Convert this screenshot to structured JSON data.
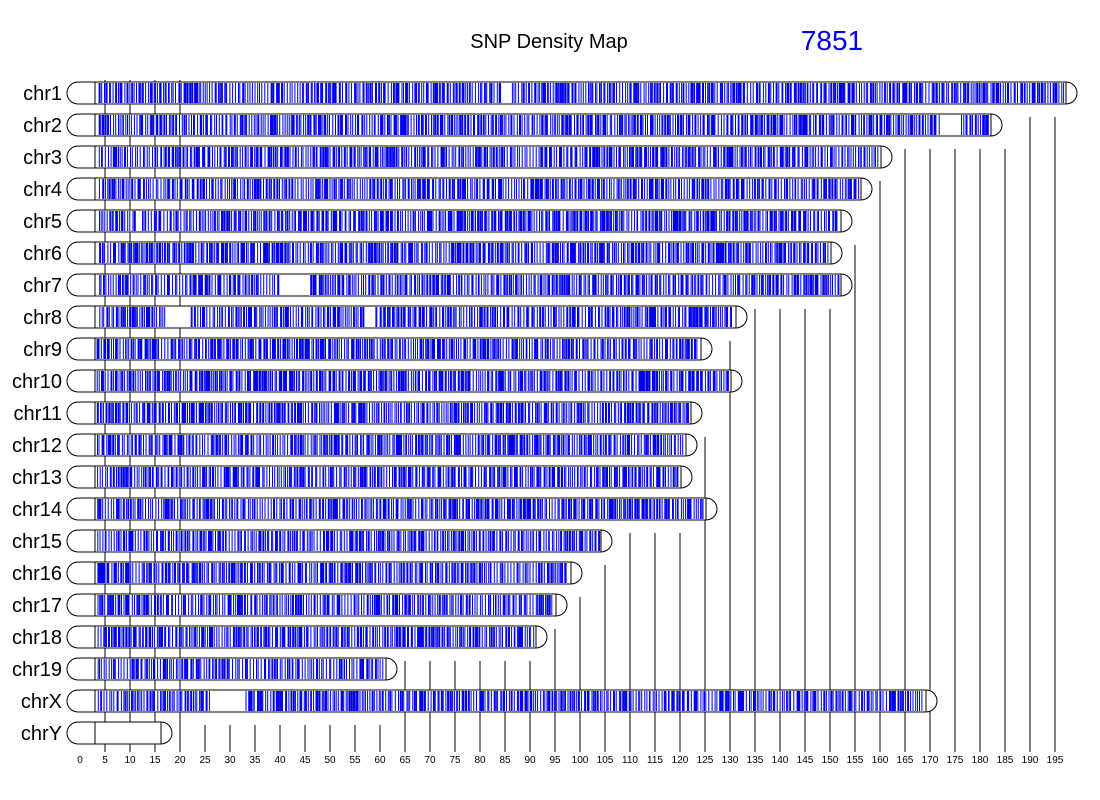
{
  "chart_data": {
    "type": "heatmap",
    "title": "SNP Density Map",
    "snp_count": "7851",
    "xlabel": "",
    "ylabel": "",
    "x_ticks": [
      0,
      5,
      10,
      15,
      20,
      25,
      30,
      35,
      40,
      45,
      50,
      55,
      60,
      65,
      70,
      75,
      80,
      85,
      90,
      95,
      100,
      105,
      110,
      115,
      120,
      125,
      130,
      135,
      140,
      145,
      150,
      155,
      160,
      165,
      170,
      175,
      180,
      185,
      190,
      195
    ],
    "xlim": [
      0,
      197
    ],
    "grid": true,
    "colors": {
      "snp": "#0000ee",
      "count": "#0000ee",
      "outline": "#000000"
    },
    "chromosomes": [
      {
        "name": "chr1",
        "length": 197,
        "gaps": [
          [
            84,
            86
          ]
        ]
      },
      {
        "name": "chr2",
        "length": 182,
        "gaps": [
          [
            172,
            176
          ]
        ]
      },
      {
        "name": "chr3",
        "length": 160,
        "gaps": []
      },
      {
        "name": "chr4",
        "length": 156,
        "gaps": []
      },
      {
        "name": "chr5",
        "length": 152,
        "gaps": [
          [
            11,
            12
          ]
        ]
      },
      {
        "name": "chr6",
        "length": 150,
        "gaps": []
      },
      {
        "name": "chr7",
        "length": 152,
        "gaps": [
          [
            40,
            46
          ]
        ]
      },
      {
        "name": "chr8",
        "length": 131,
        "gaps": [
          [
            17,
            22
          ],
          [
            57,
            59
          ]
        ]
      },
      {
        "name": "chr9",
        "length": 124,
        "gaps": []
      },
      {
        "name": "chr10",
        "length": 130,
        "gaps": []
      },
      {
        "name": "chr11",
        "length": 122,
        "gaps": []
      },
      {
        "name": "chr12",
        "length": 121,
        "gaps": []
      },
      {
        "name": "chr13",
        "length": 120,
        "gaps": []
      },
      {
        "name": "chr14",
        "length": 125,
        "gaps": []
      },
      {
        "name": "chr15",
        "length": 104,
        "gaps": []
      },
      {
        "name": "chr16",
        "length": 98,
        "gaps": []
      },
      {
        "name": "chr17",
        "length": 95,
        "gaps": []
      },
      {
        "name": "chr18",
        "length": 91,
        "gaps": []
      },
      {
        "name": "chr19",
        "length": 61,
        "gaps": []
      },
      {
        "name": "chrX",
        "length": 169,
        "gaps": [
          [
            26,
            33
          ]
        ]
      },
      {
        "name": "chrY",
        "length": 16,
        "gaps": [
          [
            3,
            16
          ]
        ]
      }
    ]
  }
}
